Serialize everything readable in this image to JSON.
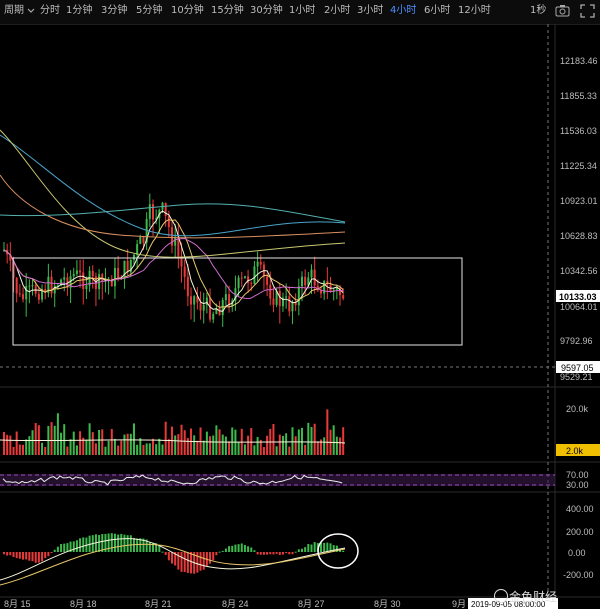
{
  "toolbar": {
    "period_label": "周期",
    "intervals": [
      "分时",
      "1分钟",
      "3分钟",
      "5分钟",
      "10分钟",
      "15分钟",
      "30分钟",
      "1小时",
      "2小时",
      "3小时",
      "4小时",
      "6小时",
      "12小时"
    ],
    "active_interval": "4小时",
    "right_label": "1秒",
    "icons": [
      "chevron-down-icon",
      "camera-icon",
      "fullscreen-icon"
    ]
  },
  "price_axis": {
    "ticks": [
      "12183.46",
      "11855.33",
      "11536.03",
      "11225.34",
      "10923.01",
      "10628.83",
      "10342.56",
      "10064.01",
      "9792.96",
      "9529.21"
    ],
    "current_price": "10133.03",
    "crosshair_price": "9597.05"
  },
  "volume_axis": {
    "ticks": [
      "20.0k"
    ],
    "current": "2.0k"
  },
  "rsi_axis": {
    "ticks": [
      "70.00",
      "30.00"
    ]
  },
  "macd_axis": {
    "ticks": [
      "400.00",
      "200.00",
      "0.00",
      "-200.00"
    ]
  },
  "x_axis": {
    "ticks": [
      "8月 15",
      "8月 18",
      "8月 21",
      "8月 24",
      "8月 27",
      "8月 30",
      "9月"
    ],
    "crosshair_time": "2019-09-05 08:00:00"
  },
  "watermark": "金色财经",
  "colors": {
    "up": "#3dba4e",
    "down": "#e83a3a",
    "active": "#4a90ff",
    "rsi_band": "#7b3a9b"
  },
  "chart_data": {
    "type": "candlestick",
    "title": "",
    "x_ticks": [
      "8月 15",
      "8月 18",
      "8月 21",
      "8月 24",
      "8月 27",
      "8月 30",
      "9月"
    ],
    "y_ticks": [
      12183.46,
      11855.33,
      11536.03,
      11225.34,
      10923.01,
      10628.83,
      10342.56,
      10064.01,
      9792.96,
      9529.21
    ],
    "ylim": [
      9529.21,
      12183.46
    ],
    "last_price": 10133.03,
    "indicators": [
      "Volume",
      "RSI",
      "MACD"
    ]
  }
}
